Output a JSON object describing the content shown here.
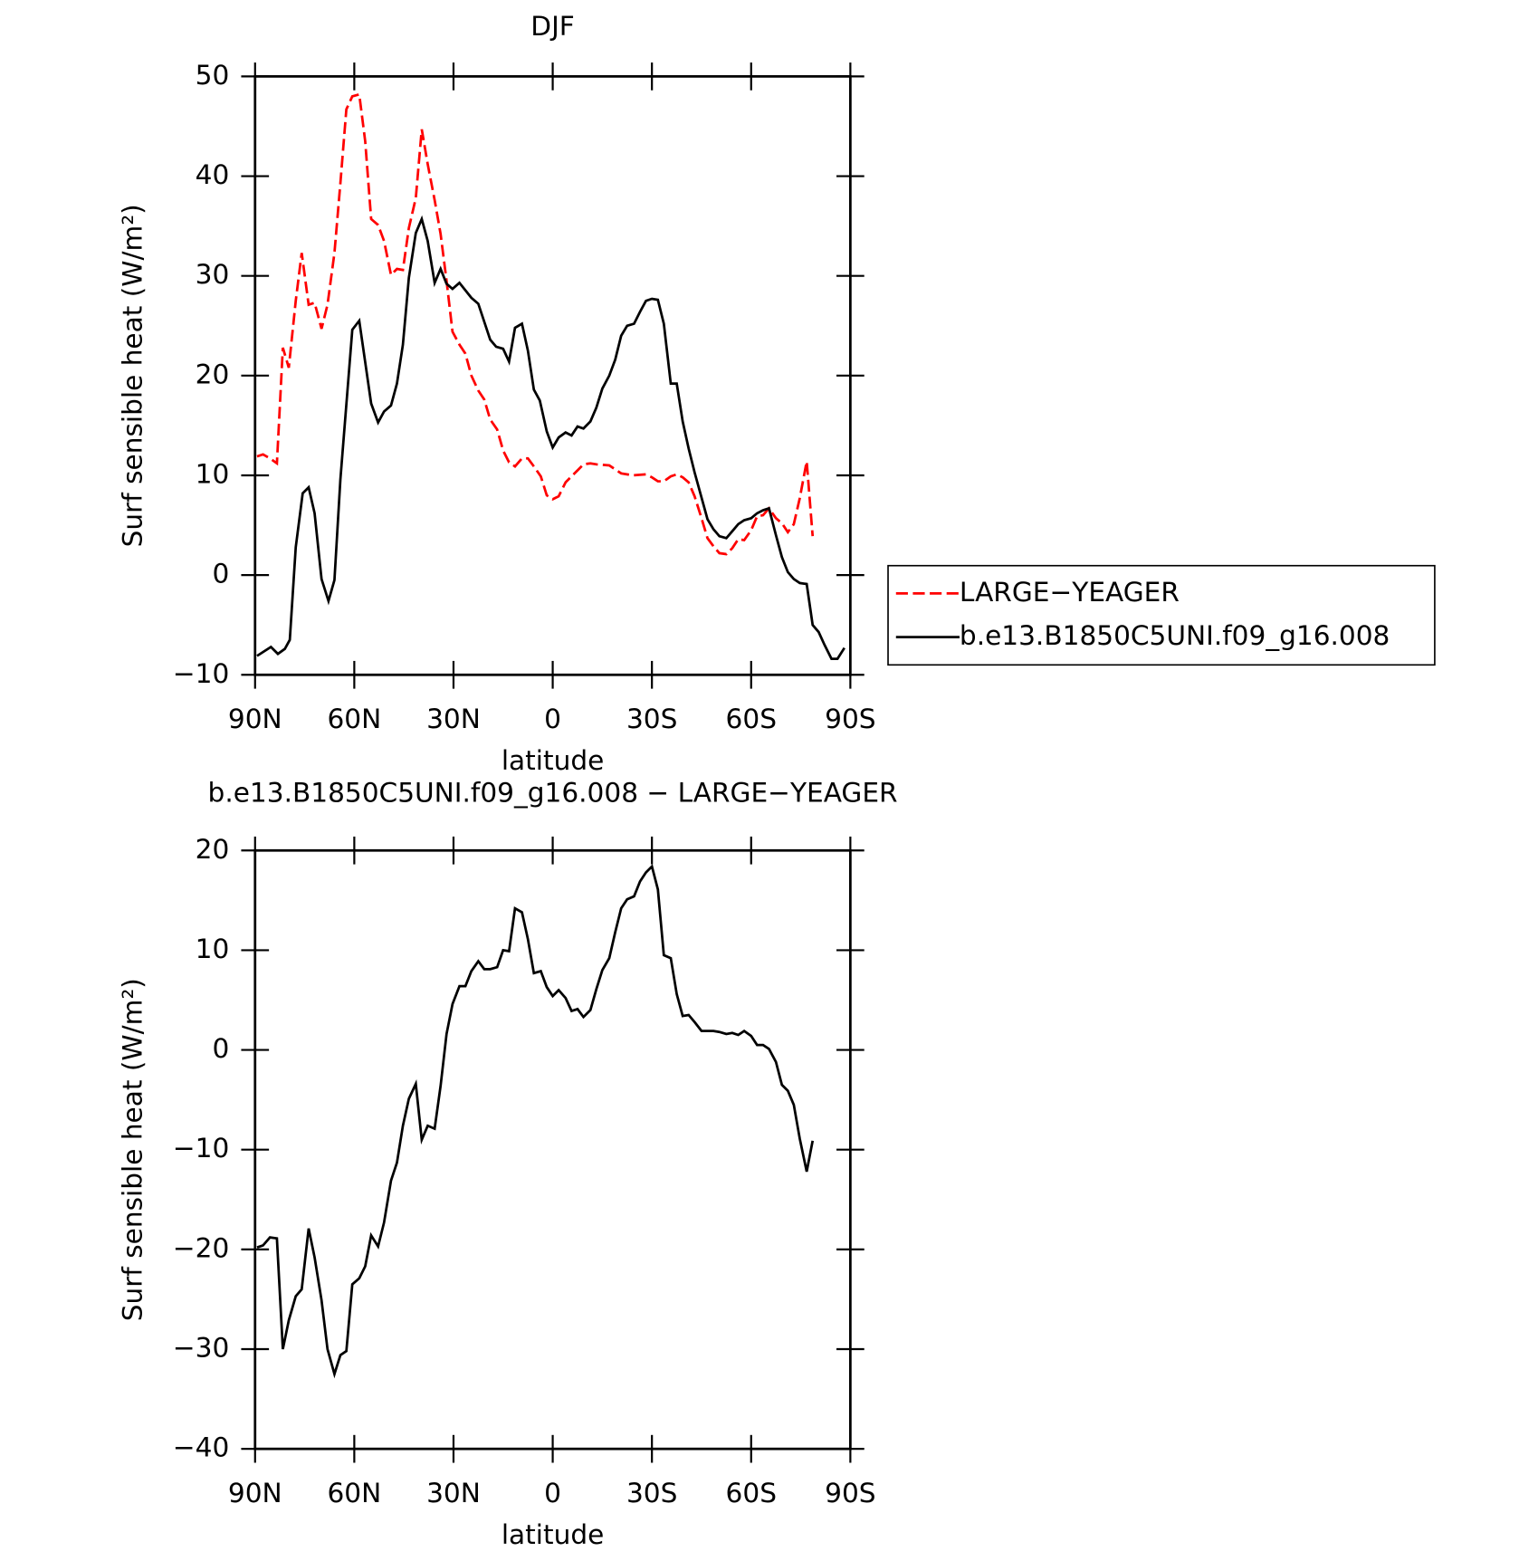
{
  "chart_data": [
    {
      "type": "line",
      "title": "DJF",
      "xlabel": "latitude",
      "ylabel": "Surf sensible heat (W/m²)",
      "xlim": [
        90,
        -90
      ],
      "xticks": [
        {
          "value": 90,
          "label": "90N"
        },
        {
          "value": 60,
          "label": "60N"
        },
        {
          "value": 30,
          "label": "30N"
        },
        0,
        {
          "value": -30,
          "label": "30S"
        },
        {
          "value": -60,
          "label": "60S"
        },
        {
          "value": -90,
          "label": "90S"
        }
      ],
      "ylim": [
        -10,
        50
      ],
      "yticks": [
        50,
        40,
        30,
        20,
        10,
        0,
        {
          "value": -10,
          "label": "−10"
        }
      ],
      "legend": "right",
      "series": [
        {
          "name": "LARGE−YEAGER",
          "color": "#ff0000",
          "dash": true,
          "x": [
            89.4,
            87.6,
            85.5,
            83.4,
            81.6,
            79.8,
            77.7,
            75.9,
            73.8,
            72,
            69.9,
            68.1,
            66,
            64.2,
            62.4,
            60.6,
            58.5,
            56.7,
            54.9,
            52.8,
            51,
            48.9,
            47.1,
            45.3,
            43.5,
            41.4,
            39.6,
            37.8,
            35.7,
            33.9,
            32.1,
            30.3,
            28.2,
            26.4,
            24.6,
            22.5,
            20.7,
            18.9,
            16.8,
            15,
            13.2,
            11.4,
            9.3,
            7.5,
            5.7,
            3.6,
            1.8,
            0,
            -1.8,
            -3.9,
            -5.7,
            -7.5,
            -9.3,
            -11.4,
            -13.2,
            -17.1,
            -18.9,
            -20.7,
            -24.3,
            -28.2,
            -30,
            -31.8,
            -33.6,
            -35.7,
            -37.5,
            -39.3,
            -41.1,
            -42.9,
            -45,
            -46.8,
            -48.6,
            -50.4,
            -52.5,
            -54.3,
            -56.1,
            -57.9,
            -60,
            -61.8,
            -63.6,
            -65.4,
            -67.5,
            -69.3,
            -71.1,
            -72.9,
            -74.7,
            -76.8,
            -78.6
          ],
          "values": [
            11.9,
            12.1,
            11.7,
            11.2,
            22.8,
            20.8,
            27.5,
            32.3,
            27.1,
            27.3,
            24.7,
            27.1,
            32.3,
            39.3,
            46.7,
            48,
            48.2,
            43.5,
            35.7,
            35.1,
            33.5,
            30.1,
            30.7,
            30.6,
            34.8,
            37.8,
            44.7,
            41.2,
            37.6,
            34.2,
            29.5,
            24.4,
            23.1,
            22.2,
            20,
            18.5,
            17.6,
            15.6,
            14.6,
            12.5,
            11.3,
            10.9,
            11.7,
            11.7,
            10.9,
            9.9,
            8,
            7.6,
            7.9,
            9.3,
            9.9,
            10.5,
            11.1,
            11.2,
            11.1,
            11,
            10.6,
            10.2,
            10,
            10.1,
            9.8,
            9.4,
            9.4,
            9.9,
            10.1,
            9.8,
            9.3,
            7.9,
            5.7,
            3.7,
            2.9,
            2.2,
            2.1,
            2.7,
            3.6,
            3.5,
            4.5,
            5.9,
            6,
            6.7,
            5.7,
            5.2,
            4.3,
            5.1,
            7.7,
            11.4,
            3.9
          ]
        },
        {
          "name": "b.e13.B1850C5UNI.f09_g16.008",
          "color": "#000000",
          "dash": false,
          "x": [
            89.4,
            85.2,
            83.1,
            81,
            79.5,
            77.7,
            75.6,
            73.8,
            72,
            69.9,
            67.8,
            66,
            64.2,
            60.6,
            58.5,
            54.9,
            52.8,
            51,
            48.9,
            47.1,
            45.3,
            43.5,
            41.4,
            39.6,
            37.8,
            35.7,
            33.9,
            32.1,
            30.3,
            28.2,
            24.6,
            22.5,
            18.9,
            17.1,
            15,
            13.2,
            11.4,
            9.3,
            7.5,
            5.7,
            3.9,
            1.8,
            0,
            -1.8,
            -3.9,
            -5.7,
            -7.5,
            -9.3,
            -11.4,
            -13.2,
            -15,
            -17.1,
            -18.9,
            -20.7,
            -22.5,
            -24.6,
            -26.4,
            -28.2,
            -30,
            -31.8,
            -33.6,
            -35.7,
            -37.5,
            -39.3,
            -41.1,
            -42.9,
            -46.8,
            -48.6,
            -50.4,
            -52.5,
            -54.3,
            -56.1,
            -57.9,
            -60,
            -61.8,
            -63.6,
            -65.4,
            -67.5,
            -69.3,
            -71.1,
            -72.9,
            -74.7,
            -76.8,
            -78.6,
            -80.4,
            -82.2,
            -84.3,
            -86.1,
            -88.2
          ],
          "values": [
            -8.1,
            -7.2,
            -7.9,
            -7.4,
            -6.5,
            2.8,
            8.2,
            8.8,
            6.2,
            -0.4,
            -2.6,
            -0.5,
            9.6,
            24.6,
            25.5,
            17.2,
            15.3,
            16.4,
            17,
            19.2,
            23.1,
            29.8,
            34.3,
            35.7,
            33.5,
            29.3,
            30.7,
            29.2,
            28.7,
            29.3,
            27.8,
            27.2,
            23.6,
            22.9,
            22.7,
            21.4,
            24.8,
            25.2,
            22.5,
            18.6,
            17.5,
            14.4,
            12.8,
            13.8,
            14.3,
            14,
            14.9,
            14.7,
            15.4,
            16.8,
            18.7,
            20,
            21.6,
            24,
            25,
            25.2,
            26.4,
            27.5,
            27.7,
            27.6,
            25.2,
            19.2,
            19.2,
            15.4,
            12.7,
            10.3,
            5.6,
            4.6,
            3.9,
            3.7,
            4.4,
            5.1,
            5.5,
            5.7,
            6.2,
            6.5,
            6.7,
            4,
            1.8,
            0.3,
            -0.4,
            -0.8,
            -0.9,
            -5,
            -5.7,
            -7,
            -8.4,
            -8.4,
            -7.3
          ]
        }
      ]
    },
    {
      "type": "line",
      "title": "b.e13.B1850C5UNI.f09_g16.008 − LARGE−YEAGER",
      "xlabel": "latitude",
      "ylabel": "Surf sensible heat (W/m²)",
      "xlim": [
        90,
        -90
      ],
      "xticks": [
        {
          "value": 90,
          "label": "90N"
        },
        {
          "value": 60,
          "label": "60N"
        },
        {
          "value": 30,
          "label": "30N"
        },
        0,
        {
          "value": -30,
          "label": "30S"
        },
        {
          "value": -60,
          "label": "60S"
        },
        {
          "value": -90,
          "label": "90S"
        }
      ],
      "ylim": [
        -40,
        20
      ],
      "yticks": [
        20,
        10,
        0,
        {
          "value": -10,
          "label": "−10"
        },
        {
          "value": -20,
          "label": "−20"
        },
        {
          "value": -30,
          "label": "−30"
        },
        {
          "value": -40,
          "label": "−40"
        }
      ],
      "series": [
        {
          "color": "#000000",
          "dash": false,
          "x": [
            89.4,
            87.6,
            85.5,
            83.4,
            81.6,
            79.8,
            77.7,
            75.9,
            73.8,
            72,
            69.9,
            68.1,
            66,
            64.2,
            62.4,
            60.6,
            58.5,
            56.7,
            54.9,
            52.8,
            51,
            48.9,
            47.1,
            45.3,
            43.5,
            41.4,
            39.6,
            37.8,
            35.7,
            33.9,
            32.1,
            30.3,
            28.2,
            26.4,
            24.6,
            22.5,
            20.7,
            18.9,
            16.8,
            15,
            13.2,
            11.4,
            9.3,
            7.5,
            5.7,
            3.6,
            1.8,
            0,
            -1.8,
            -3.9,
            -5.7,
            -7.5,
            -9.3,
            -11.4,
            -13.2,
            -15,
            -17.1,
            -18.9,
            -20.7,
            -22.5,
            -24.6,
            -26.4,
            -28.2,
            -30,
            -31.8,
            -33.6,
            -35.7,
            -37.5,
            -39.3,
            -41.1,
            -42.9,
            -45,
            -46.8,
            -48.6,
            -50.4,
            -52.5,
            -54.3,
            -56.1,
            -57.9,
            -60,
            -61.8,
            -63.6,
            -65.4,
            -67.5,
            -69.3,
            -71.1,
            -72.9,
            -74.7,
            -76.8,
            -78.6
          ],
          "values": [
            -19.8,
            -19.6,
            -18.8,
            -18.9,
            -30,
            -27.1,
            -24.7,
            -24,
            -17.9,
            -20.8,
            -25.1,
            -30,
            -32.5,
            -30.6,
            -30.2,
            -23.5,
            -22.9,
            -21.7,
            -18.6,
            -19.7,
            -17.3,
            -13.1,
            -11.3,
            -7.6,
            -4.9,
            -3.4,
            -9,
            -7.6,
            -7.9,
            -3.6,
            1.6,
            4.6,
            6.4,
            6.4,
            7.9,
            8.9,
            8.1,
            8.1,
            8.3,
            10,
            9.9,
            14.2,
            13.8,
            11.1,
            7.7,
            7.9,
            6.3,
            5.4,
            6,
            5.2,
            3.9,
            4.1,
            3.3,
            4,
            6.1,
            8,
            9.2,
            11.8,
            14.2,
            15.1,
            15.4,
            16.9,
            17.8,
            18.4,
            16.1,
            9.5,
            9.2,
            5.6,
            3.4,
            3.5,
            2.8,
            1.9,
            1.9,
            1.9,
            1.8,
            1.6,
            1.7,
            1.5,
            1.9,
            1.4,
            0.5,
            0.5,
            0.1,
            -1.2,
            -3.5,
            -4.1,
            -5.5,
            -8.9,
            -12.2,
            -9.1
          ]
        }
      ]
    }
  ]
}
